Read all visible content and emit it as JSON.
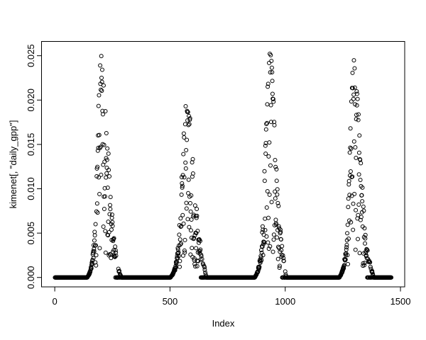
{
  "figure": {
    "background_color": "#ffffff",
    "foreground_color": "#000000"
  },
  "chart_data": {
    "type": "scatter",
    "title": "",
    "xlabel": "Index",
    "ylabel": "kimenet[, \"daily_gpp\"]",
    "grid": false,
    "legend": false,
    "marker": {
      "style": "open-circle",
      "color": "#000000",
      "radius_px": 2.5,
      "stroke_width": 1
    },
    "n_points": 1460,
    "x_axis": {
      "range": [
        -57.36,
        1518.36
      ],
      "ticks": [
        0,
        500,
        1000,
        1500
      ],
      "tick_labels": [
        "0",
        "500",
        "1000",
        "1500"
      ]
    },
    "y_axis": {
      "range": [
        -0.00106,
        0.02661
      ],
      "ticks": [
        0,
        0.005,
        0.01,
        0.015,
        0.02,
        0.025
      ],
      "tick_labels": [
        "0.000",
        "0.005",
        "0.010",
        "0.015",
        "0.020",
        "0.025"
      ]
    },
    "description": "Daily GPP time series plotted against index (day). Four annual cycles of 365 days: values are exactly 0 in winter (dense overlapping circles form solid black bands at y=0) and rise to a scattered summer peak each year.",
    "season_peaks": [
      0.0255,
      0.0205,
      0.0255,
      0.0246
    ],
    "seasons": [
      {
        "year": 1,
        "start_index": 0,
        "days": 365,
        "peak_day": 205,
        "peak_value": 0.0255,
        "envelope": [
          [
            141,
            0
          ],
          [
            150,
            0.0005
          ],
          [
            158,
            0.0013
          ],
          [
            166,
            0.0028
          ],
          [
            173,
            0.0055
          ],
          [
            180,
            0.0105
          ],
          [
            186,
            0.016
          ],
          [
            192,
            0.021
          ],
          [
            198,
            0.0245
          ],
          [
            205,
            0.0255
          ],
          [
            212,
            0.0243
          ],
          [
            220,
            0.0205
          ],
          [
            228,
            0.0165
          ],
          [
            236,
            0.0125
          ],
          [
            244,
            0.0092
          ],
          [
            252,
            0.0062
          ],
          [
            260,
            0.004
          ],
          [
            268,
            0.0024
          ],
          [
            276,
            0.0012
          ],
          [
            283,
            0.0005
          ],
          [
            289,
            0
          ]
        ]
      },
      {
        "year": 2,
        "start_index": 365,
        "days": 365,
        "peak_day": 206,
        "peak_value": 0.0205,
        "envelope": [
          [
            137,
            0
          ],
          [
            148,
            0.0005
          ],
          [
            157,
            0.0012
          ],
          [
            166,
            0.0026
          ],
          [
            174,
            0.005
          ],
          [
            182,
            0.009
          ],
          [
            190,
            0.0145
          ],
          [
            198,
            0.0185
          ],
          [
            206,
            0.0205
          ],
          [
            214,
            0.0198
          ],
          [
            222,
            0.018
          ],
          [
            230,
            0.015
          ],
          [
            238,
            0.012
          ],
          [
            246,
            0.0092
          ],
          [
            254,
            0.007
          ],
          [
            262,
            0.005
          ],
          [
            270,
            0.0035
          ],
          [
            278,
            0.0022
          ],
          [
            286,
            0.0012
          ],
          [
            293,
            0
          ]
        ]
      },
      {
        "year": 3,
        "start_index": 730,
        "days": 365,
        "peak_day": 205,
        "peak_value": 0.0255,
        "envelope": [
          [
            138,
            0
          ],
          [
            148,
            0.0006
          ],
          [
            157,
            0.0015
          ],
          [
            165,
            0.003
          ],
          [
            173,
            0.0065
          ],
          [
            180,
            0.012
          ],
          [
            187,
            0.018
          ],
          [
            193,
            0.0225
          ],
          [
            199,
            0.0248
          ],
          [
            205,
            0.0255
          ],
          [
            212,
            0.024
          ],
          [
            219,
            0.02
          ],
          [
            226,
            0.016
          ],
          [
            233,
            0.012
          ],
          [
            240,
            0.0088
          ],
          [
            247,
            0.006
          ],
          [
            254,
            0.004
          ],
          [
            261,
            0.0025
          ],
          [
            268,
            0.0012
          ],
          [
            274,
            0
          ]
        ]
      },
      {
        "year": 4,
        "start_index": 1095,
        "days": 365,
        "peak_day": 204,
        "peak_value": 0.0246,
        "envelope": [
          [
            140,
            0
          ],
          [
            150,
            0.0006
          ],
          [
            159,
            0.0015
          ],
          [
            167,
            0.003
          ],
          [
            175,
            0.006
          ],
          [
            182,
            0.0115
          ],
          [
            188,
            0.017
          ],
          [
            193,
            0.021
          ],
          [
            198,
            0.0242
          ],
          [
            204,
            0.0246
          ],
          [
            210,
            0.0235
          ],
          [
            217,
            0.021
          ],
          [
            224,
            0.018
          ],
          [
            231,
            0.0145
          ],
          [
            238,
            0.011
          ],
          [
            245,
            0.008
          ],
          [
            252,
            0.0055
          ],
          [
            259,
            0.0038
          ],
          [
            266,
            0.0026
          ],
          [
            274,
            0.0016
          ],
          [
            282,
            0.0008
          ],
          [
            289,
            0
          ]
        ]
      }
    ]
  }
}
